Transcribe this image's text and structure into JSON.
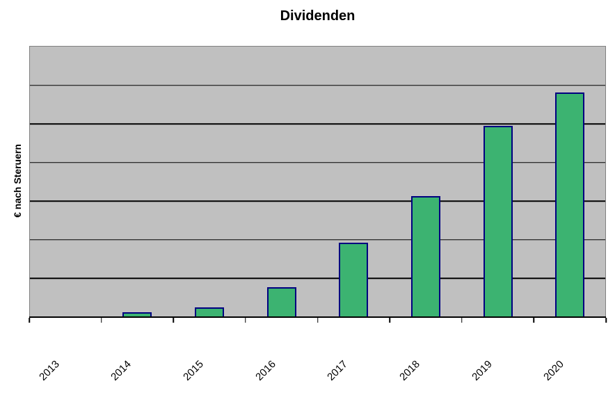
{
  "chart_data": {
    "type": "bar",
    "title": "Dividenden",
    "ylabel": "€ nach Steruern",
    "xlabel": "",
    "categories": [
      "2013",
      "2014",
      "2015",
      "2016",
      "2017",
      "2018",
      "2019",
      "2020"
    ],
    "values": [
      0,
      0.1,
      0.23,
      0.76,
      1.91,
      3.11,
      4.93,
      5.79
    ],
    "ylim": [
      0,
      7
    ],
    "y_gridline_interval": 1,
    "y_tick_labels_visible": false,
    "grid": true,
    "legend": false,
    "colors": {
      "bar_fill": "#3cb371",
      "bar_border": "#000080",
      "plot_background": "#c0c0c0",
      "plot_border": "#808080",
      "gridline": "#000000",
      "axis": "#000000",
      "text": "#000000",
      "page_background": "#ffffff"
    }
  }
}
